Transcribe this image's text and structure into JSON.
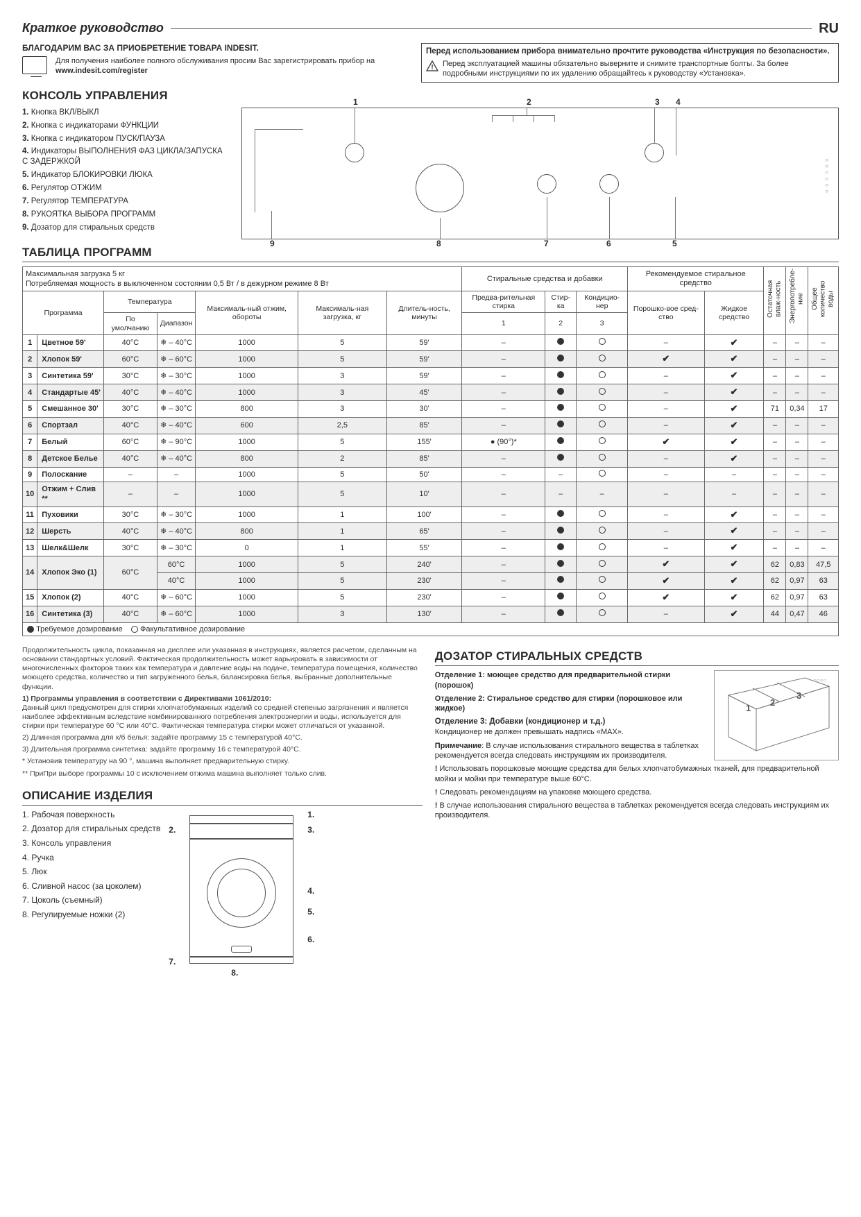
{
  "lang": "RU",
  "guide_title": "Краткое руководство",
  "thanks": "БЛАГОДАРИМ ВАС ЗА ПРИОБРЕТЕНИЕ ТОВАРА INDESIT.",
  "reg_text": "Для получения наиболее полного обслуживания просим Вас зарегистрировать прибор на",
  "reg_url": "www.indesit.com/register",
  "safety_title": "Перед использованием прибора внимательно прочтите руководства «Инструкция по безопасности».",
  "safety_body": "Перед эксплуатацией машины обязательно выверните и снимите транспортные болты. За более подробными инструкциями по их удалению обращайтесь к руководству «Установка».",
  "sec_console": "КОНСОЛЬ УПРАВЛЕНИЯ",
  "console_items": [
    "Кнопка ВКЛ/ВЫКЛ",
    "Кнопка с индикаторами ФУНКЦИИ",
    "Кнопка с индикатором ПУСК/ПАУЗА",
    "Индикаторы ВЫПОЛНЕНИЯ ФАЗ ЦИКЛА/ЗАПУСКА С ЗАДЕРЖКОЙ",
    "Индикатор БЛОКИРОВКИ ЛЮКА",
    "Регулятор ОТЖИМ",
    "Регулятор ТЕМПЕРАТУРА",
    "РУКОЯТКА ВЫБОРА ПРОГРАММ",
    "Дозатор для стиральных средств"
  ],
  "sec_table": "ТАБЛИЦА ПРОГРАММ",
  "table_note_top": "Максимальная загрузка 5 кг\nПотребляемая мощность в выключенном состоянии 0,5 Вт / в дежурном режиме 8 Вт",
  "hdr": {
    "program": "Программа",
    "temp": "Температура",
    "temp_def": "По умолчанию",
    "temp_range": "Диапазон",
    "spin": "Максималь-ный отжим, обороты",
    "load": "Максималь-ная загрузка, кг",
    "dur": "Длитель-ность, минуты",
    "detergents": "Стиральные средства и добавки",
    "recommended": "Рекомендуемое стиральное средство",
    "prewash": "Предва-рительная стирка",
    "wash": "Стир-ка",
    "softener": "Кондицио-нер",
    "powder": "Порошко-вое сред-ство",
    "liquid": "Жидкое средство",
    "humidity": "Остаточная влаж-ность",
    "energy": "Энергопотребле-ние",
    "water": "Общее количество воды",
    "c1": "1",
    "c2": "2",
    "c3": "3"
  },
  "programs": [
    {
      "n": "1",
      "name": "Цветное 59'",
      "td": "40°C",
      "tr": "❄ – 40°C",
      "spin": "1000",
      "load": "5",
      "dur": "59'",
      "pre": "–",
      "wash": "●",
      "soft": "○",
      "pow": "–",
      "liq": "✔",
      "h": "–",
      "e": "–",
      "w": "–",
      "alt": false
    },
    {
      "n": "2",
      "name": "Хлопок 59'",
      "td": "60°C",
      "tr": "❄ – 60°C",
      "spin": "1000",
      "load": "5",
      "dur": "59'",
      "pre": "–",
      "wash": "●",
      "soft": "○",
      "pow": "✔",
      "liq": "✔",
      "h": "–",
      "e": "–",
      "w": "–",
      "alt": true
    },
    {
      "n": "3",
      "name": "Синтетика 59'",
      "td": "30°C",
      "tr": "❄ – 30°C",
      "spin": "1000",
      "load": "3",
      "dur": "59'",
      "pre": "–",
      "wash": "●",
      "soft": "○",
      "pow": "–",
      "liq": "✔",
      "h": "–",
      "e": "–",
      "w": "–",
      "alt": false
    },
    {
      "n": "4",
      "name": "Стандартые 45'",
      "td": "40°C",
      "tr": "❄ – 40°C",
      "spin": "1000",
      "load": "3",
      "dur": "45'",
      "pre": "–",
      "wash": "●",
      "soft": "○",
      "pow": "–",
      "liq": "✔",
      "h": "–",
      "e": "–",
      "w": "–",
      "alt": true
    },
    {
      "n": "5",
      "name": "Смешанное 30'",
      "td": "30°C",
      "tr": "❄ – 30°C",
      "spin": "800",
      "load": "3",
      "dur": "30'",
      "pre": "–",
      "wash": "●",
      "soft": "○",
      "pow": "–",
      "liq": "✔",
      "h": "71",
      "e": "0,34",
      "w": "17",
      "alt": false
    },
    {
      "n": "6",
      "name": "Спортзал",
      "td": "40°C",
      "tr": "❄ – 40°C",
      "spin": "600",
      "load": "2,5",
      "dur": "85'",
      "pre": "–",
      "wash": "●",
      "soft": "○",
      "pow": "–",
      "liq": "✔",
      "h": "–",
      "e": "–",
      "w": "–",
      "alt": true
    },
    {
      "n": "7",
      "name": "Белый",
      "td": "60°C",
      "tr": "❄ – 90°C",
      "spin": "1000",
      "load": "5",
      "dur": "155'",
      "pre": "● (90°)*",
      "wash": "●",
      "soft": "○",
      "pow": "✔",
      "liq": "✔",
      "h": "–",
      "e": "–",
      "w": "–",
      "alt": false
    },
    {
      "n": "8",
      "name": "Детское Белье",
      "td": "40°C",
      "tr": "❄ – 40°C",
      "spin": "800",
      "load": "2",
      "dur": "85'",
      "pre": "–",
      "wash": "●",
      "soft": "○",
      "pow": "–",
      "liq": "✔",
      "h": "–",
      "e": "–",
      "w": "–",
      "alt": true
    },
    {
      "n": "9",
      "name": "Полоскание",
      "td": "–",
      "tr": "–",
      "spin": "1000",
      "load": "5",
      "dur": "50'",
      "pre": "–",
      "wash": "–",
      "soft": "○",
      "pow": "–",
      "liq": "–",
      "h": "–",
      "e": "–",
      "w": "–",
      "alt": false
    },
    {
      "n": "10",
      "name": "Отжим + Слив **",
      "td": "–",
      "tr": "–",
      "spin": "1000",
      "load": "5",
      "dur": "10'",
      "pre": "–",
      "wash": "–",
      "soft": "–",
      "pow": "–",
      "liq": "–",
      "h": "–",
      "e": "–",
      "w": "–",
      "alt": true
    },
    {
      "n": "11",
      "name": "Пуховики",
      "td": "30°C",
      "tr": "❄ – 30°C",
      "spin": "1000",
      "load": "1",
      "dur": "100'",
      "pre": "–",
      "wash": "●",
      "soft": "○",
      "pow": "–",
      "liq": "✔",
      "h": "–",
      "e": "–",
      "w": "–",
      "alt": false
    },
    {
      "n": "12",
      "name": "Шерсть",
      "td": "40°C",
      "tr": "❄ – 40°C",
      "spin": "800",
      "load": "1",
      "dur": "65'",
      "pre": "–",
      "wash": "●",
      "soft": "○",
      "pow": "–",
      "liq": "✔",
      "h": "–",
      "e": "–",
      "w": "–",
      "alt": true
    },
    {
      "n": "13",
      "name": "Шелк&Шелк",
      "td": "30°C",
      "tr": "❄ – 30°C",
      "spin": "0",
      "load": "1",
      "dur": "55'",
      "pre": "–",
      "wash": "●",
      "soft": "○",
      "pow": "–",
      "liq": "✔",
      "h": "–",
      "e": "–",
      "w": "–",
      "alt": false
    },
    {
      "n": "14",
      "name": "Хлопок Эко (1)",
      "td": "60°C",
      "tr": "60°C",
      "spin": "1000",
      "load": "5",
      "dur": "240'",
      "pre": "–",
      "wash": "●",
      "soft": "○",
      "pow": "✔",
      "liq": "✔",
      "h": "62",
      "e": "0,83",
      "w": "47,5",
      "alt": true,
      "rowspan": true,
      "sub": {
        "tr": "40°C",
        "spin": "1000",
        "load": "5",
        "dur": "230'",
        "pre": "–",
        "wash": "●",
        "soft": "○",
        "pow": "✔",
        "liq": "✔",
        "h": "62",
        "e": "0,97",
        "w": "63"
      }
    },
    {
      "n": "15",
      "name": "Хлопок (2)",
      "td": "40°C",
      "tr": "❄ – 60°C",
      "spin": "1000",
      "load": "5",
      "dur": "230'",
      "pre": "–",
      "wash": "●",
      "soft": "○",
      "pow": "✔",
      "liq": "✔",
      "h": "62",
      "e": "0,97",
      "w": "63",
      "alt": false
    },
    {
      "n": "16",
      "name": "Синтетика (3)",
      "td": "40°C",
      "tr": "❄ – 60°C",
      "spin": "1000",
      "load": "3",
      "dur": "130'",
      "pre": "–",
      "wash": "●",
      "soft": "○",
      "pow": "–",
      "liq": "✔",
      "h": "44",
      "e": "0,47",
      "w": "46",
      "alt": true
    }
  ],
  "legend_req": "Требуемое дозирование",
  "legend_opt": "Факультативное дозирование",
  "notes_p1": "Продолжительность цикла, показанная на дисплее или указанная в инструкциях, является расчетом, сделанным на основании стандартных условий. Фактическая продолжительность может варьировать в зависимости от многочисленных факторов таких как температура и давление воды на подаче, температура помещения, количество моющего средства, количество и тип загруженного белья, балансировка белья, выбранные дополнительные функции.",
  "notes_h1": "1) Программы управления в соответствии с Директивами 1061/2010:",
  "notes_p2": "Данный цикл предусмотрен для стирки хлопчатобумажных изделий со средней степенью загрязнения и является наиболее эффективным вследствие комбинированного потребления электроэнергии и воды, используется для стирки при температуре 60 °C или 40°C. Фактическая температура стирки может отличаться от указанной.",
  "notes_p3": "2) Длинная программа для х/б белья: задайте программу 15 с температурой 40°C.",
  "notes_p4": "3) Длительная программа синтетика: задайте программу 16 с температурой 40°C.",
  "notes_p5": "* Установив температуру на 90 °, машина выполняет предварительную стирку.",
  "notes_p6": "** ПриПри выборе программы 10 с исключением отжима машина выполняет только слив.",
  "sec_desc": "ОПИСАНИЕ ИЗДЕЛИЯ",
  "desc_items": [
    "Рабочая поверхность",
    "Дозатор для стиральных средств",
    "Консоль управления",
    "Ручка",
    "Люк",
    "Сливной насос (за цоколем)",
    "Цоколь (съемный)",
    "Регулируемые ножки (2)"
  ],
  "sec_dispenser": "ДОЗАТОР СТИРАЛЬНЫХ СРЕДСТВ",
  "disp_1_t": "Отделение 1: моющее средство для предварительной стирки (порошок)",
  "disp_2_t": "Отделение 2: Стиральное средство для стирки (порошковое или жидкое)",
  "disp_3_t": "Отделение 3: Добавки (кондиционер и т.д.)",
  "disp_3_b": "Кондиционер не должен превышать надпись «MAX».",
  "disp_note_t": "Примечание",
  "disp_note_b": ": В случае использования стирального вещества в таблетках рекомендуется всегда следовать инструкциям их производителя.",
  "disp_w1": "Использовать порошковые моющие средства для белых хлопчатобумажных тканей, для предварительной мойки и мойки при температуре выше 60°C.",
  "disp_w2": "Cледовать рекомендациям на упаковке моющего средства.",
  "disp_w3": "В случае использования стирального вещества в таблетках рекомендуется всегда следовать инструкциям их производителя.",
  "colors": {
    "text": "#2b2b2b",
    "border": "#666666",
    "alt_row": "#eeeeee"
  }
}
